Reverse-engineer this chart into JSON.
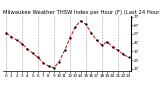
{
  "title": "Milwaukee Weather THSW Index per Hour (F) (Last 24 Hours)",
  "hours": [
    0,
    1,
    2,
    3,
    4,
    5,
    6,
    7,
    8,
    9,
    10,
    11,
    12,
    13,
    14,
    15,
    16,
    17,
    18,
    19,
    20,
    21,
    22,
    23
  ],
  "values": [
    58,
    54,
    50,
    46,
    40,
    35,
    30,
    24,
    20,
    18,
    25,
    38,
    52,
    65,
    72,
    68,
    58,
    50,
    44,
    48,
    42,
    38,
    34,
    30
  ],
  "line_color": "#dd0000",
  "marker_color": "#000000",
  "bg_color": "#ffffff",
  "grid_color": "#888888",
  "title_color": "#000000",
  "ylim": [
    14,
    78
  ],
  "yticks": [
    17,
    27,
    37,
    47,
    57,
    67,
    77
  ],
  "ytick_labels": [
    "17",
    "27",
    "37",
    "47",
    "57",
    "67",
    "77"
  ],
  "xticks": [
    0,
    1,
    2,
    3,
    4,
    5,
    6,
    7,
    8,
    9,
    10,
    11,
    12,
    13,
    14,
    15,
    16,
    17,
    18,
    19,
    20,
    21,
    22,
    23
  ],
  "xtick_labels": [
    "0",
    "1",
    "2",
    "3",
    "4",
    "5",
    "6",
    "7",
    "8",
    "9",
    "10",
    "11",
    "12",
    "13",
    "14",
    "15",
    "16",
    "17",
    "18",
    "19",
    "20",
    "21",
    "22",
    "23"
  ],
  "grid_xticks": [
    0,
    3,
    6,
    9,
    12,
    15,
    18,
    21
  ],
  "title_fontsize": 3.8,
  "tick_fontsize": 3.0,
  "linewidth": 0.7,
  "markersize": 1.3
}
